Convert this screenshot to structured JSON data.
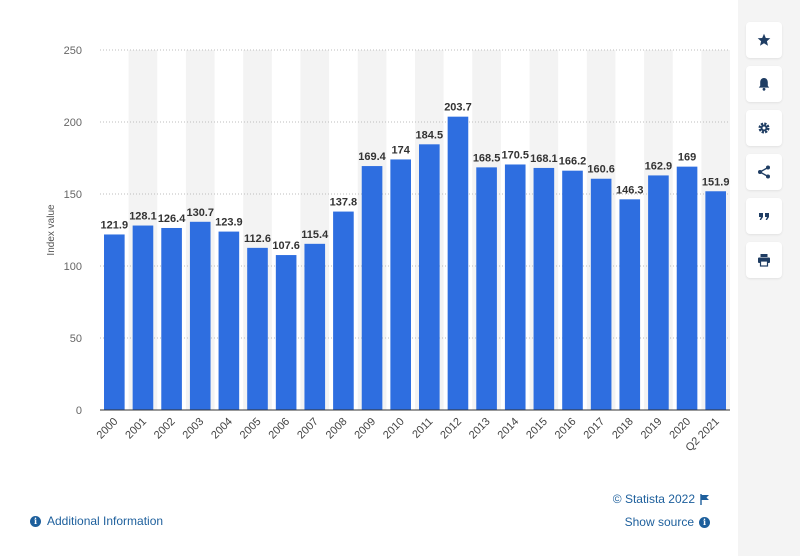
{
  "chart_data": {
    "type": "bar",
    "categories": [
      "2000",
      "2001",
      "2002",
      "2003",
      "2004",
      "2005",
      "2006",
      "2007",
      "2008",
      "2009",
      "2010",
      "2011",
      "2012",
      "2013",
      "2014",
      "2015",
      "2016",
      "2017",
      "2018",
      "2019",
      "2020",
      "Q2 2021"
    ],
    "values": [
      121.9,
      128.1,
      126.4,
      130.7,
      123.9,
      112.6,
      107.6,
      115.4,
      137.8,
      169.4,
      174,
      184.5,
      203.7,
      168.5,
      170.5,
      168.1,
      166.2,
      160.6,
      146.3,
      162.9,
      169,
      151.9
    ],
    "labels": [
      "121.9",
      "128.1",
      "126.4",
      "130.7",
      "123.9",
      "112.6",
      "107.6",
      "115.4",
      "137.8",
      "169.4",
      "174",
      "184.5",
      "203.7",
      "168.5",
      "170.5",
      "168.1",
      "166.2",
      "160.6",
      "146.3",
      "162.9",
      "169",
      "151.9"
    ],
    "ylabel": "Index value",
    "xlabel": "",
    "ylim": [
      0,
      250
    ],
    "yticks": [
      0,
      50,
      100,
      150,
      200,
      250
    ],
    "ytick_labels": [
      "0",
      "50",
      "100",
      "150",
      "200",
      "250"
    ],
    "bar_color": "#2e6ee0",
    "grid": true
  },
  "footer": {
    "copyright": "© Statista 2022",
    "additional_info": "Additional Information",
    "show_source": "Show source"
  },
  "sidebar": {
    "buttons": [
      {
        "name": "favorite-button",
        "icon": "star-icon"
      },
      {
        "name": "notification-button",
        "icon": "bell-icon"
      },
      {
        "name": "settings-button",
        "icon": "gear-icon"
      },
      {
        "name": "share-button",
        "icon": "share-icon"
      },
      {
        "name": "cite-button",
        "icon": "quote-icon"
      },
      {
        "name": "print-button",
        "icon": "print-icon"
      }
    ]
  }
}
